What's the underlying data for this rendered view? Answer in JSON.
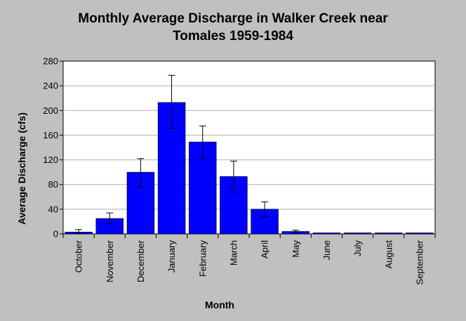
{
  "chart_data": {
    "type": "bar",
    "title_lines": [
      "Monthly Average Discharge in Walker Creek near",
      "Tomales 1959-1984"
    ],
    "xlabel": "Month",
    "ylabel": "Average Discharge (cfs)",
    "categories": [
      "October",
      "November",
      "December",
      "January",
      "February",
      "March",
      "April",
      "May",
      "June",
      "July",
      "August",
      "September"
    ],
    "series": [
      {
        "values": [
          3,
          25,
          100,
          213,
          149,
          93,
          40,
          4,
          0.5,
          0.3,
          0.3,
          0.5
        ],
        "error_low": [
          1,
          17,
          76,
          171,
          122,
          68,
          28,
          2,
          0.2,
          0.1,
          0.1,
          0.2
        ],
        "error_high": [
          7,
          34,
          122,
          257,
          175,
          118,
          52,
          6,
          1,
          0.6,
          0.6,
          1
        ],
        "color": "#0000ff"
      }
    ],
    "ylim": [
      0,
      280
    ],
    "yticks": [
      0,
      40,
      80,
      120,
      160,
      200,
      240,
      280
    ],
    "grid": true,
    "legend": "none"
  }
}
